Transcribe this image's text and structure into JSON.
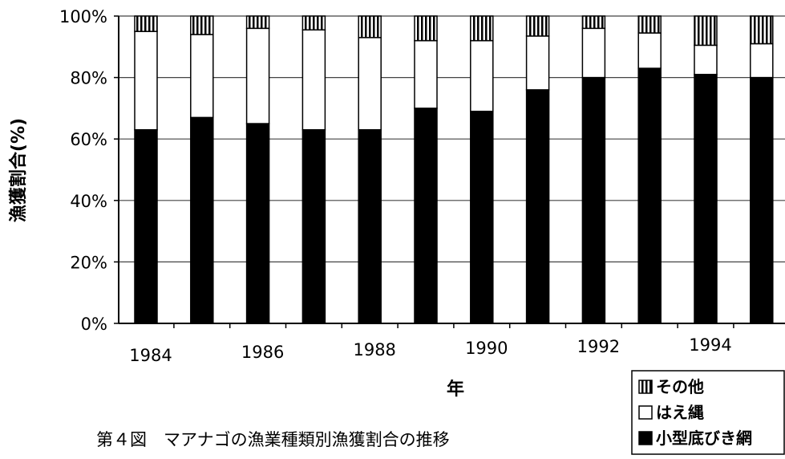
{
  "chart_data": {
    "type": "bar",
    "stacked": true,
    "percent_stacked": true,
    "title": "第４図　マアナゴの漁業種類別漁獲割合の推移",
    "xlabel": "年",
    "ylabel": "漁獲割合(%)",
    "ylim": [
      0,
      100
    ],
    "yticks": [
      "0%",
      "20%",
      "40%",
      "60%",
      "80%",
      "100%"
    ],
    "xtick_labels": [
      "1984",
      "1986",
      "1988",
      "1990",
      "1992",
      "1994"
    ],
    "categories": [
      1984,
      1985,
      1986,
      1987,
      1988,
      1989,
      1990,
      1991,
      1992,
      1993,
      1994,
      1995
    ],
    "grid": true,
    "legend_position": "bottom-right",
    "series": [
      {
        "name": "小型底びき網",
        "values": [
          63,
          67,
          65,
          63,
          63,
          70,
          69,
          76,
          80,
          83,
          81,
          80
        ]
      },
      {
        "name": "はえ縄",
        "values": [
          32,
          27,
          31,
          32.5,
          30,
          22,
          23,
          17.5,
          16,
          11.5,
          9.5,
          11
        ]
      },
      {
        "name": "その他",
        "values": [
          5,
          6,
          4,
          4.5,
          7,
          8,
          8,
          6.5,
          4,
          5.5,
          9.5,
          9
        ]
      }
    ],
    "series_colors": [
      "#000000",
      "#ffffff",
      "#000000"
    ],
    "series_patterns": [
      "solid",
      "none",
      "vertical-stripes"
    ],
    "legend_order": [
      "その他",
      "はえ縄",
      "小型底びき網"
    ]
  }
}
